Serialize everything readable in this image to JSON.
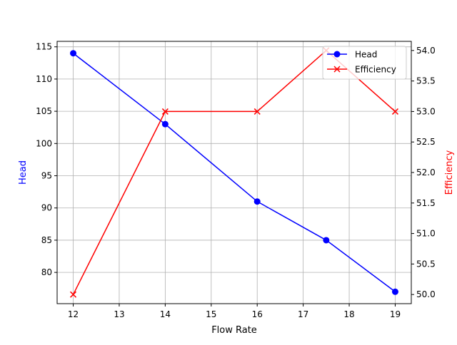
{
  "chart_data": {
    "type": "line",
    "title": "",
    "xlabel": "Flow Rate",
    "ylabel": "Head",
    "ylabel_right": "Efficiency",
    "x": [
      12,
      14,
      16,
      17.5,
      19
    ],
    "series": [
      {
        "name": "Head",
        "axis": "left",
        "color": "#0000ff",
        "marker": "o",
        "values": [
          114,
          103,
          91,
          85,
          77
        ]
      },
      {
        "name": "Efficiency",
        "axis": "right",
        "color": "#ff0000",
        "marker": "x",
        "values": [
          50,
          53,
          53,
          54,
          53
        ]
      }
    ],
    "xlim": [
      11.65,
      19.35
    ],
    "ylim": [
      75.15,
      115.85
    ],
    "ylim_right": [
      49.85,
      54.15
    ],
    "xticks": [
      12,
      13,
      14,
      15,
      16,
      17,
      18,
      19
    ],
    "yticks": [
      80,
      85,
      90,
      95,
      100,
      105,
      110,
      115
    ],
    "yticks_right": [
      "50.0",
      "50.5",
      "51.0",
      "51.5",
      "52.0",
      "52.5",
      "53.0",
      "53.5",
      "54.0"
    ],
    "grid": true,
    "legend_position": "upper right"
  }
}
